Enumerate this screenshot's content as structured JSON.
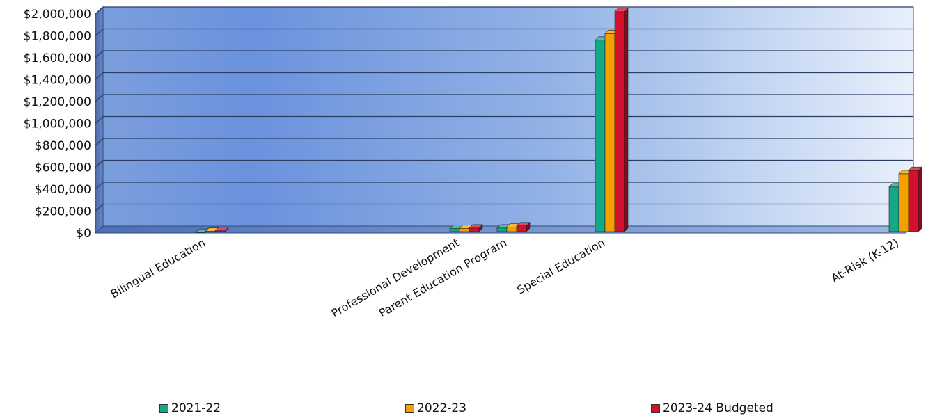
{
  "chart_data": {
    "type": "bar",
    "title": "",
    "xlabel": "",
    "ylabel": "",
    "ylim": [
      0,
      2000000
    ],
    "y_ticks": [
      "$0",
      "$200,000",
      "$400,000",
      "$600,000",
      "$800,000",
      "$1,000,000",
      "$1,200,000",
      "$1,400,000",
      "$1,600,000",
      "$1,800,000",
      "$2,000,000"
    ],
    "categories": [
      "Bilingual Education",
      "Professional Development",
      "Parent Education Program",
      "Special Education",
      "At-Risk (K-12)"
    ],
    "series": [
      {
        "name": "2021-22",
        "color": "#14a884",
        "values": [
          5000,
          40000,
          45000,
          1760000,
          420000
        ]
      },
      {
        "name": "2022-23",
        "color": "#f5a000",
        "values": [
          15000,
          42000,
          55000,
          1820000,
          540000
        ]
      },
      {
        "name": "2023-24 Budgeted",
        "color": "#d4102c",
        "values": [
          20000,
          45000,
          65000,
          2020000,
          570000
        ]
      }
    ],
    "grid": true,
    "legend_position": "bottom"
  }
}
